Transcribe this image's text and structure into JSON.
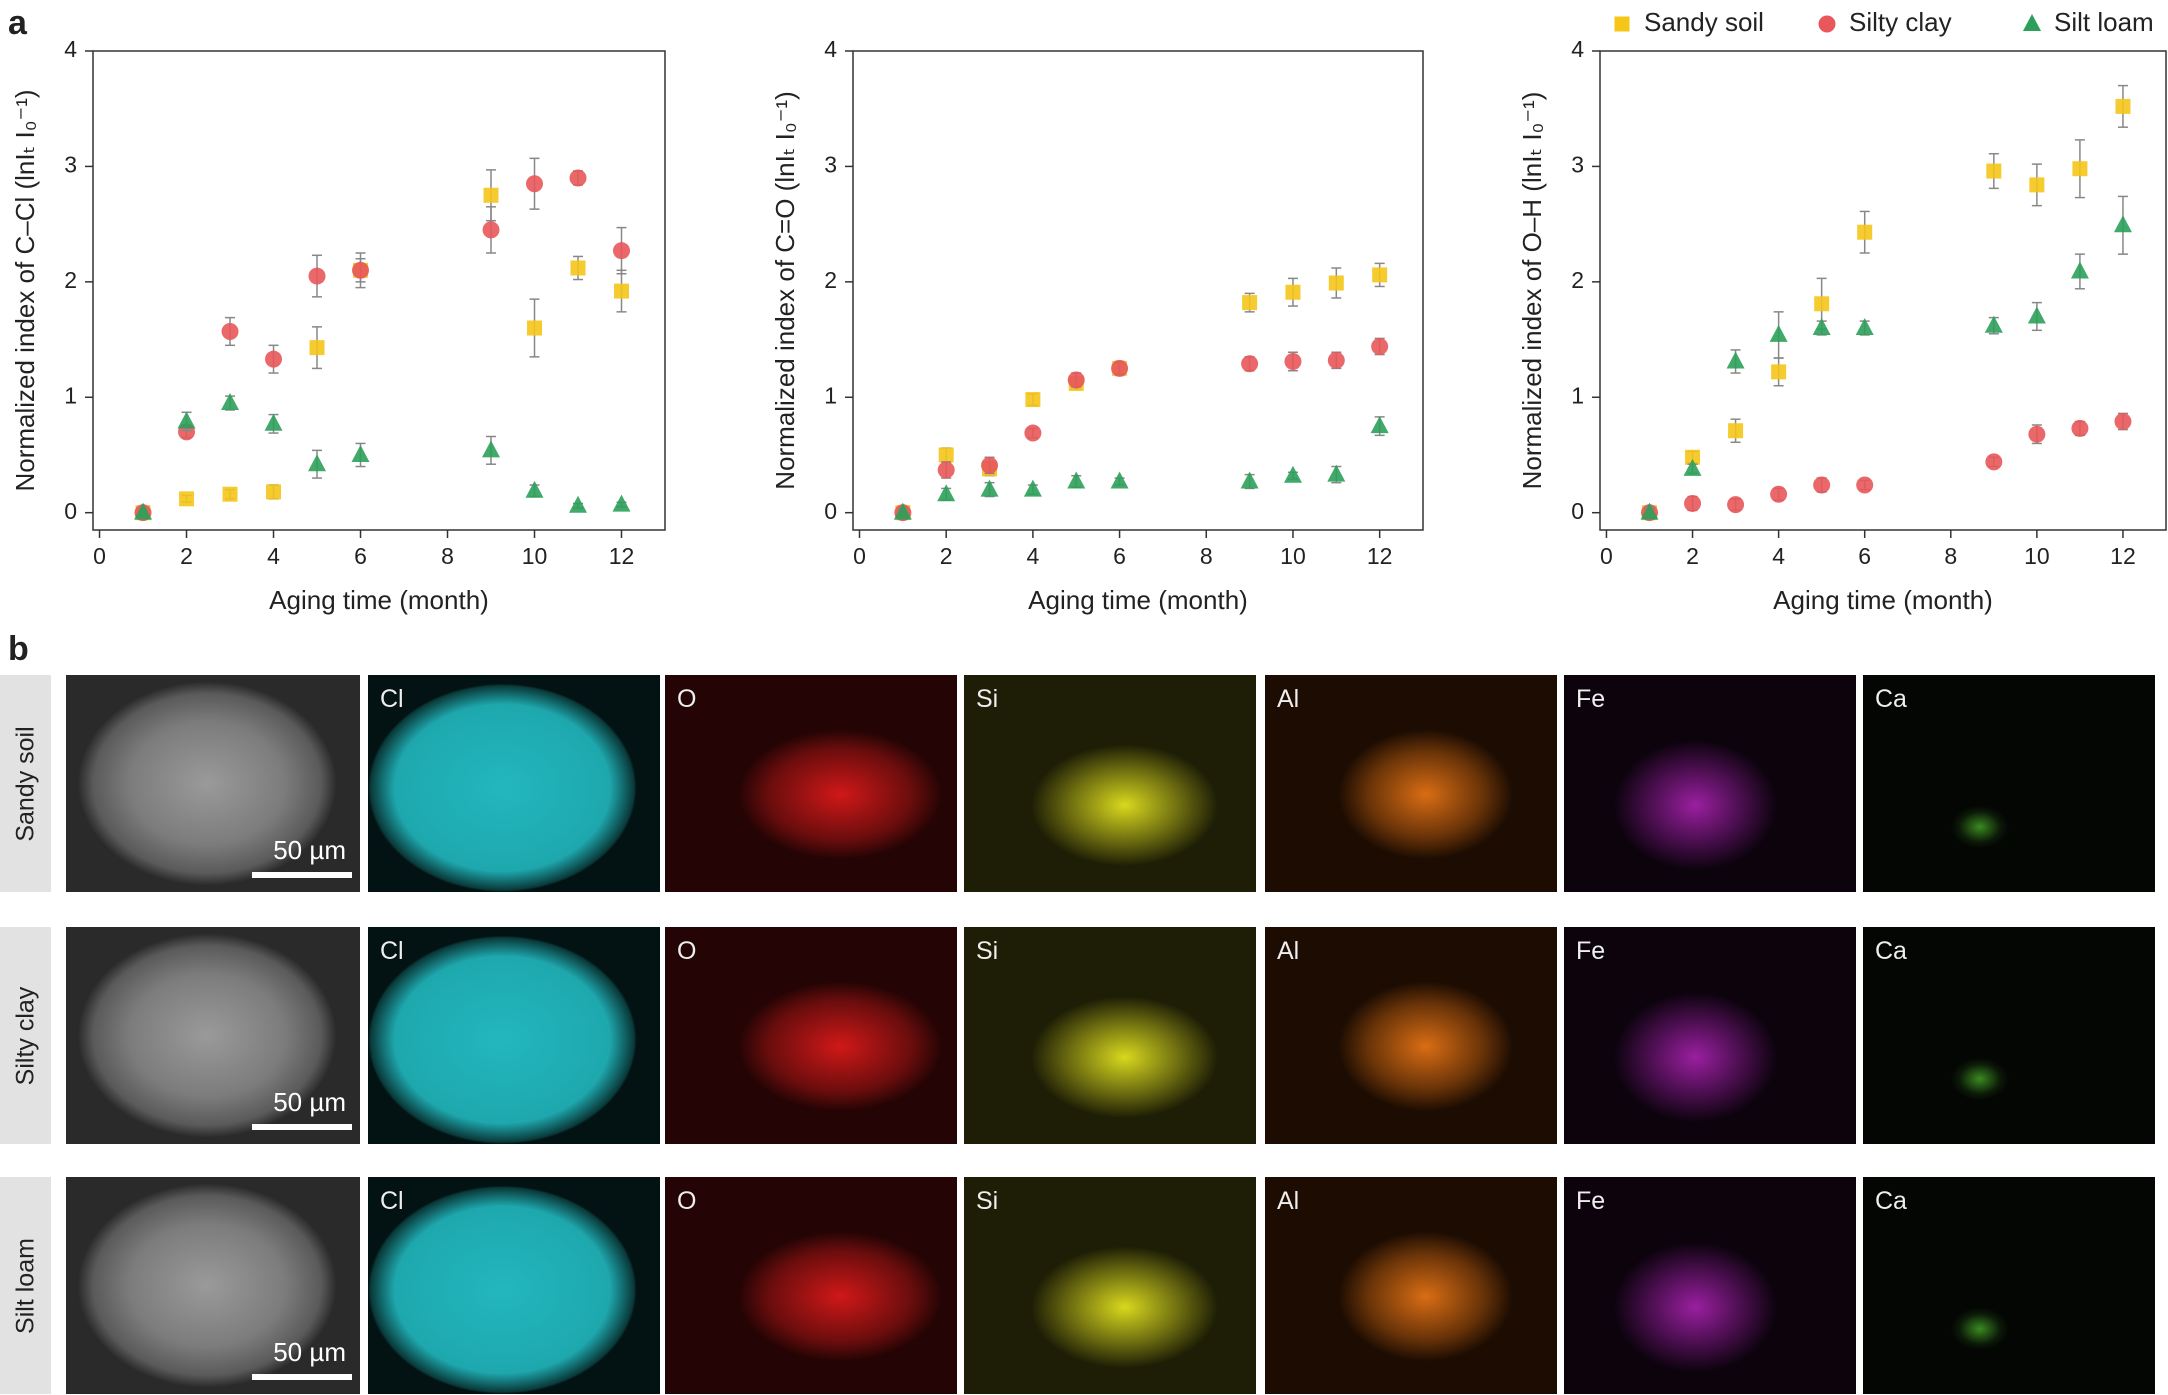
{
  "panel_labels": [
    "a",
    "b"
  ],
  "chart_data": [
    {
      "type": "scatter",
      "ylabel": "Normalized index of C–Cl (lnIₜ I₀⁻¹)",
      "xlabel": "Aging time (month)",
      "x": [
        1,
        2,
        3,
        4,
        5,
        6,
        9,
        10,
        11,
        12
      ],
      "xlim": [
        -0.15,
        13
      ],
      "xticks": [
        0,
        2,
        4,
        6,
        8,
        10,
        12
      ],
      "ylim": [
        -0.15,
        4
      ],
      "yticks": [
        0,
        1,
        2,
        3,
        4
      ],
      "series": [
        {
          "name": "Sandy soil",
          "color": "#f5c518",
          "marker": "square",
          "values": [
            0,
            0.12,
            0.16,
            0.18,
            1.43,
            2.1,
            2.75,
            1.6,
            2.12,
            1.92
          ],
          "errors": [
            0.03,
            0.03,
            0.04,
            0.06,
            0.18,
            0.1,
            0.22,
            0.25,
            0.1,
            0.18
          ]
        },
        {
          "name": "Silty clay",
          "color": "#e8575a",
          "marker": "circle",
          "values": [
            0,
            0.7,
            1.57,
            1.33,
            2.05,
            2.1,
            2.45,
            2.85,
            2.9,
            2.27
          ],
          "errors": [
            0.03,
            0.05,
            0.12,
            0.12,
            0.18,
            0.15,
            0.2,
            0.22,
            0.06,
            0.2
          ]
        },
        {
          "name": "Silt loam",
          "color": "#2ca05a",
          "marker": "triangle",
          "values": [
            0,
            0.79,
            0.95,
            0.77,
            0.42,
            0.5,
            0.54,
            0.19,
            0.06,
            0.07
          ],
          "errors": [
            0.03,
            0.08,
            0.06,
            0.08,
            0.12,
            0.1,
            0.12,
            0.05,
            0.02,
            0.02
          ]
        }
      ]
    },
    {
      "type": "scatter",
      "ylabel": "Normalized index of C=O (lnIₜ I₀⁻¹)",
      "xlabel": "Aging time (month)",
      "x": [
        1,
        2,
        3,
        4,
        5,
        6,
        9,
        10,
        11,
        12
      ],
      "xlim": [
        -0.15,
        13
      ],
      "xticks": [
        0,
        2,
        4,
        6,
        8,
        10,
        12
      ],
      "ylim": [
        -0.15,
        4
      ],
      "yticks": [
        0,
        1,
        2,
        3,
        4
      ],
      "series": [
        {
          "name": "Sandy soil",
          "color": "#f5c518",
          "marker": "square",
          "values": [
            0,
            0.5,
            0.38,
            0.98,
            1.12,
            1.25,
            1.82,
            1.91,
            1.99,
            2.06
          ],
          "errors": [
            0.05,
            0.06,
            0.06,
            0.05,
            0.05,
            0.06,
            0.08,
            0.12,
            0.13,
            0.1
          ]
        },
        {
          "name": "Silty clay",
          "color": "#e8575a",
          "marker": "circle",
          "values": [
            0,
            0.37,
            0.41,
            0.69,
            1.15,
            1.25,
            1.29,
            1.31,
            1.32,
            1.44
          ],
          "errors": [
            0.04,
            0.07,
            0.07,
            0.04,
            0.06,
            0.05,
            0.06,
            0.08,
            0.07,
            0.07
          ]
        },
        {
          "name": "Silt loam",
          "color": "#2ca05a",
          "marker": "triangle",
          "values": [
            0,
            0.16,
            0.2,
            0.2,
            0.27,
            0.27,
            0.27,
            0.32,
            0.33,
            0.75
          ],
          "errors": [
            0.03,
            0.05,
            0.06,
            0.04,
            0.05,
            0.03,
            0.06,
            0.03,
            0.07,
            0.08
          ]
        }
      ]
    },
    {
      "type": "scatter",
      "ylabel": "Normalized index of O–H (lnIₜ I₀⁻¹)",
      "xlabel": "Aging time (month)",
      "x": [
        1,
        2,
        3,
        4,
        5,
        6,
        9,
        10,
        11,
        12
      ],
      "xlim": [
        -0.15,
        13
      ],
      "xticks": [
        0,
        2,
        4,
        6,
        8,
        10,
        12
      ],
      "ylim": [
        -0.15,
        4
      ],
      "yticks": [
        0,
        1,
        2,
        3,
        4
      ],
      "legend": "top-right",
      "series": [
        {
          "name": "Sandy soil",
          "color": "#f5c518",
          "marker": "square",
          "values": [
            0,
            0.48,
            0.71,
            1.22,
            1.81,
            2.43,
            2.96,
            2.84,
            2.98,
            3.52
          ],
          "errors": [
            0.05,
            0.05,
            0.1,
            0.12,
            0.22,
            0.18,
            0.15,
            0.18,
            0.25,
            0.18
          ]
        },
        {
          "name": "Silty clay",
          "color": "#e8575a",
          "marker": "circle",
          "values": [
            0,
            0.08,
            0.07,
            0.16,
            0.24,
            0.24,
            0.44,
            0.68,
            0.73,
            0.79
          ],
          "errors": [
            0.03,
            0.06,
            0.05,
            0.05,
            0.06,
            0.04,
            0.04,
            0.08,
            0.06,
            0.07
          ]
        },
        {
          "name": "Silt loam",
          "color": "#2ca05a",
          "marker": "triangle",
          "values": [
            0,
            0.38,
            1.31,
            1.54,
            1.6,
            1.6,
            1.62,
            1.7,
            2.09,
            2.49
          ],
          "errors": [
            0.05,
            0.04,
            0.1,
            0.2,
            0.06,
            0.06,
            0.07,
            0.12,
            0.15,
            0.25
          ]
        }
      ]
    }
  ],
  "panel_b": {
    "rows": [
      {
        "label": "Sandy soil",
        "scale_bar": "50 µm",
        "maps": [
          "Cl",
          "O",
          "Si",
          "Al",
          "Fe",
          "Ca"
        ]
      },
      {
        "label": "Silty clay",
        "scale_bar": "50 µm",
        "maps": [
          "Cl",
          "O",
          "Si",
          "Al",
          "Fe",
          "Ca"
        ]
      },
      {
        "label": "Silt loam",
        "scale_bar": "50 µm",
        "maps": [
          "Cl",
          "O",
          "Si",
          "Al",
          "Fe",
          "Ca"
        ]
      }
    ]
  }
}
